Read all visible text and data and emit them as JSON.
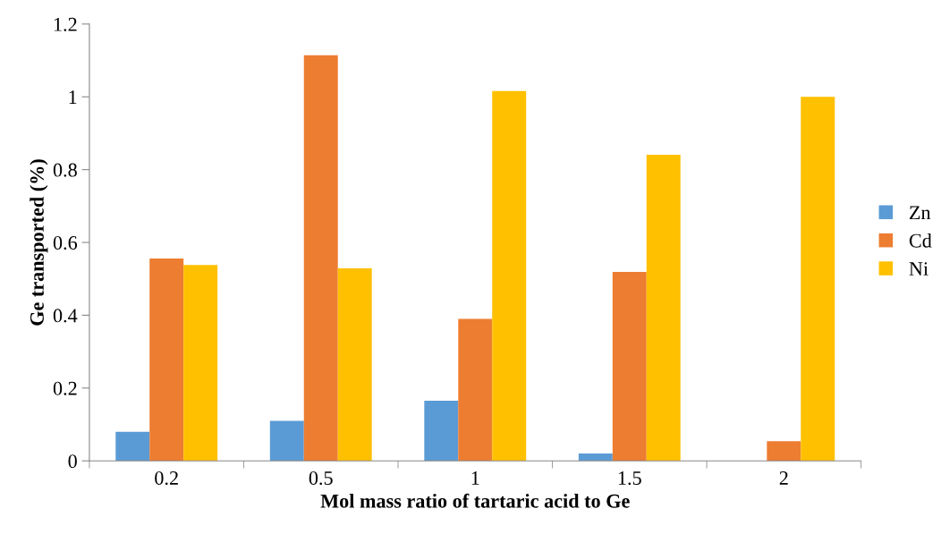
{
  "chart_data": {
    "type": "bar",
    "xlabel": "Mol mass ratio of tartaric acid to Ge",
    "ylabel": "Ge transported (%)",
    "categories": [
      "0.2",
      "0.5",
      "1",
      "1.5",
      "2"
    ],
    "series": [
      {
        "name": "Zn",
        "color": "#5b9bd5",
        "values": [
          0.08,
          0.11,
          0.165,
          0.02,
          0
        ]
      },
      {
        "name": "Cd",
        "color": "#ed7d31",
        "values": [
          0.556,
          1.114,
          0.39,
          0.519,
          0.054
        ]
      },
      {
        "name": "Ni",
        "color": "#ffc000",
        "values": [
          0.538,
          0.529,
          1.016,
          0.841,
          1.0
        ]
      }
    ],
    "ylim": [
      0,
      1.2
    ],
    "yticks": [
      0,
      0.2,
      0.4,
      0.6,
      0.8,
      1,
      1.2
    ],
    "grid": false,
    "legend": "right"
  }
}
